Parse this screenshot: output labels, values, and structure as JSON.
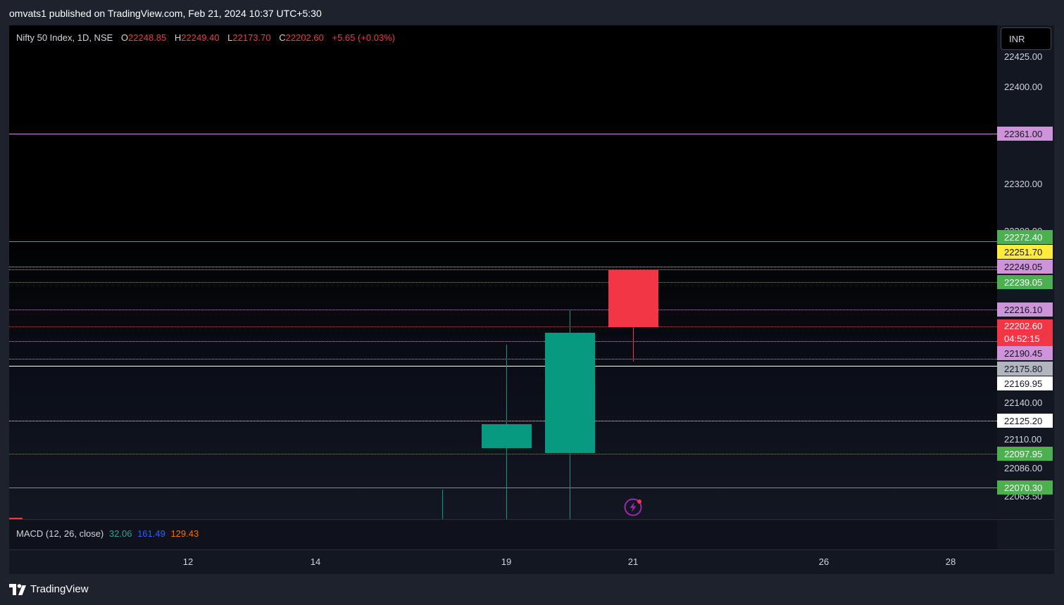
{
  "header": {
    "published_text": "omvats1 published on TradingView.com, Feb 21, 2024 10:37 UTC+5:30"
  },
  "legend": {
    "symbol": "Nifty 50 Index, 1D, NSE",
    "open_label": "O",
    "open": "22248.85",
    "high_label": "H",
    "high": "22249.40",
    "low_label": "L",
    "low": "22173.70",
    "close_label": "C",
    "close": "22202.60",
    "change": "+5.65 (+0.03%)"
  },
  "currency_button": "INR",
  "price_ticks": [
    "22425.00",
    "22400.00",
    "22320.00",
    "22300.00",
    "22140.00",
    "22110.00",
    "22086.00",
    "22063.50"
  ],
  "levels": [
    {
      "value": "22361.00",
      "color": "#ce93d8",
      "style": "solid"
    },
    {
      "value": "22272.40",
      "color": "#4caf50",
      "style": "solid"
    },
    {
      "value": "22251.70",
      "color": "#ffeb3b",
      "style": "dotted"
    },
    {
      "value": "22249.05",
      "color": "#ce93d8",
      "style": "dotted"
    },
    {
      "value": "22239.05",
      "color": "#4caf50",
      "style": "dotted"
    },
    {
      "value": "22216.10",
      "color": "#ce93d8",
      "style": "dotted"
    },
    {
      "value": "22202.60",
      "color": "#f23645",
      "style": "dotted"
    },
    {
      "value": "22190.45",
      "color": "#ce93d8",
      "style": "dotted"
    },
    {
      "value": "22175.80",
      "color": "#b2b5be",
      "style": "solid"
    },
    {
      "value": "22169.95",
      "color": "#ffffff",
      "style": "solid"
    },
    {
      "value": "22125.20",
      "color": "#ffffff",
      "style": "dotted"
    },
    {
      "value": "22097.95",
      "color": "#4caf50",
      "style": "dotted"
    },
    {
      "value": "22070.30",
      "color": "#4caf50",
      "style": "solid"
    }
  ],
  "countdown": "04:52:15",
  "macd": {
    "label": "MACD (12, 26, close)",
    "v1": "32.06",
    "v2": "161.49",
    "v3": "129.43"
  },
  "time_labels": [
    "12",
    "14",
    "19",
    "21",
    "26",
    "28"
  ],
  "branding": "TradingView",
  "colors": {
    "up": "#089981",
    "down": "#f23645"
  },
  "chart_data": {
    "type": "candlestick",
    "title": "Nifty 50 Index, 1D, NSE",
    "candles": [
      {
        "x": "16",
        "open": null,
        "high": 22063.0,
        "low": null,
        "close": null
      },
      {
        "x": "19",
        "open": 22100,
        "high": 22186,
        "low": 22045,
        "close": 22122
      },
      {
        "x": "20",
        "open": 22096,
        "high": 22213,
        "low": 22045,
        "close": 22196
      },
      {
        "x": "21",
        "open": 22248.85,
        "high": 22249.4,
        "low": 22173.7,
        "close": 22202.6
      }
    ],
    "ylim": [
      22040,
      22440
    ]
  }
}
